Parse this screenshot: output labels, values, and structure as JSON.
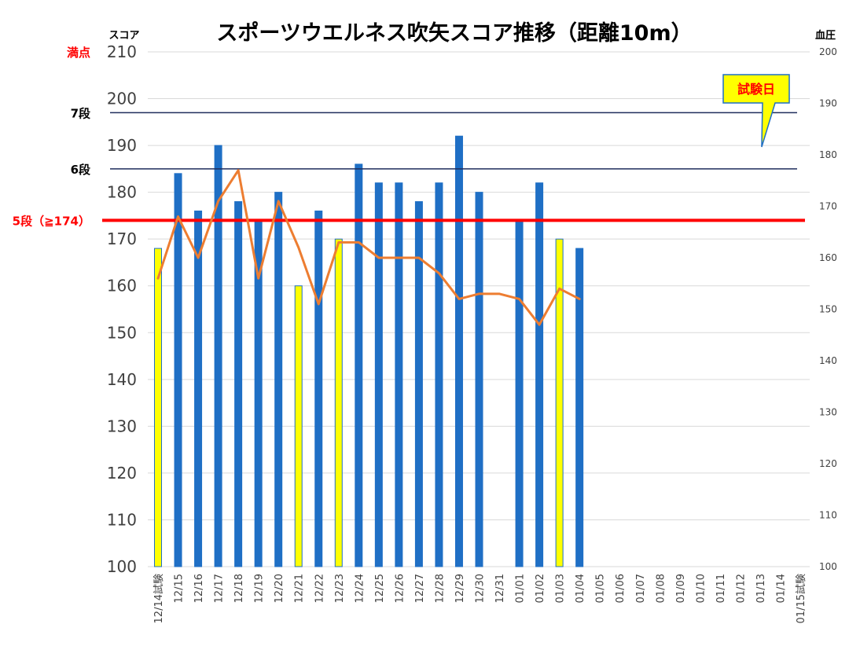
{
  "chart_data": {
    "type": "bar",
    "title": "スポーツウエルネス吹矢スコア推移（距離10m）",
    "ylabel": "スコア",
    "y2label": "血圧",
    "ylim": [
      100,
      210
    ],
    "y2lim": [
      100,
      200
    ],
    "yticks": [
      "100",
      "110",
      "120",
      "130",
      "140",
      "150",
      "160",
      "170",
      "180",
      "190",
      "200",
      "210"
    ],
    "y2ticks": [
      "100",
      "110",
      "120",
      "130",
      "140",
      "150",
      "160",
      "170",
      "180",
      "190",
      "200"
    ],
    "grid": true,
    "categories": [
      "12/14試験",
      "12/15",
      "12/16",
      "12/17",
      "12/18",
      "12/19",
      "12/20",
      "12/21",
      "12/22",
      "12/23",
      "12/24",
      "12/25",
      "12/26",
      "12/27",
      "12/28",
      "12/29",
      "12/30",
      "12/31",
      "01/01",
      "01/02",
      "01/03",
      "01/04",
      "01/05",
      "01/06",
      "01/07",
      "01/08",
      "01/09",
      "01/10",
      "01/11",
      "01/12",
      "01/13",
      "01/14",
      "01/15試験"
    ],
    "bars": [
      {
        "value": 168,
        "kind": "test"
      },
      {
        "value": 184,
        "kind": "practice"
      },
      {
        "value": 176,
        "kind": "practice"
      },
      {
        "value": 190,
        "kind": "practice"
      },
      {
        "value": 178,
        "kind": "practice"
      },
      {
        "value": 174,
        "kind": "practice"
      },
      {
        "value": 180,
        "kind": "practice"
      },
      {
        "value": 160,
        "kind": "test"
      },
      {
        "value": 176,
        "kind": "practice"
      },
      {
        "value": 170,
        "kind": "test"
      },
      {
        "value": 186,
        "kind": "practice"
      },
      {
        "value": 182,
        "kind": "practice"
      },
      {
        "value": 182,
        "kind": "practice"
      },
      {
        "value": 178,
        "kind": "practice"
      },
      {
        "value": 182,
        "kind": "practice"
      },
      {
        "value": 192,
        "kind": "practice"
      },
      {
        "value": 180,
        "kind": "practice"
      },
      {
        "value": null,
        "kind": "none"
      },
      {
        "value": 174,
        "kind": "practice"
      },
      {
        "value": 182,
        "kind": "practice"
      },
      {
        "value": 170,
        "kind": "test"
      },
      {
        "value": 168,
        "kind": "practice"
      },
      null,
      null,
      null,
      null,
      null,
      null,
      null,
      null,
      null,
      null,
      null
    ],
    "line_blood_pressure": [
      156,
      168,
      160,
      171,
      177,
      156,
      171,
      162,
      151,
      163,
      163,
      160,
      160,
      160,
      157,
      152,
      153,
      153,
      152,
      147,
      154,
      152
    ],
    "reference_lines": [
      {
        "label": "満点",
        "value": 210,
        "color": "#ff0000",
        "line": false
      },
      {
        "label": "7段",
        "value": 197,
        "color": "#000000",
        "line": true,
        "line_color": "#1f2d5c"
      },
      {
        "label": "6段",
        "value": 185,
        "color": "#000000",
        "line": true,
        "line_color": "#1f2d5c"
      },
      {
        "label": "5段（≧174）",
        "value": 174,
        "color": "#ff0000",
        "line": true,
        "line_color": "#ff0000"
      }
    ],
    "callout": {
      "text": "試験日",
      "points_to": "01/13"
    },
    "colors": {
      "practice_bar": "#1f6fc5",
      "test_bar": "#ffff00",
      "line": "#ed7d31",
      "grid": "#d9d9d9"
    }
  }
}
